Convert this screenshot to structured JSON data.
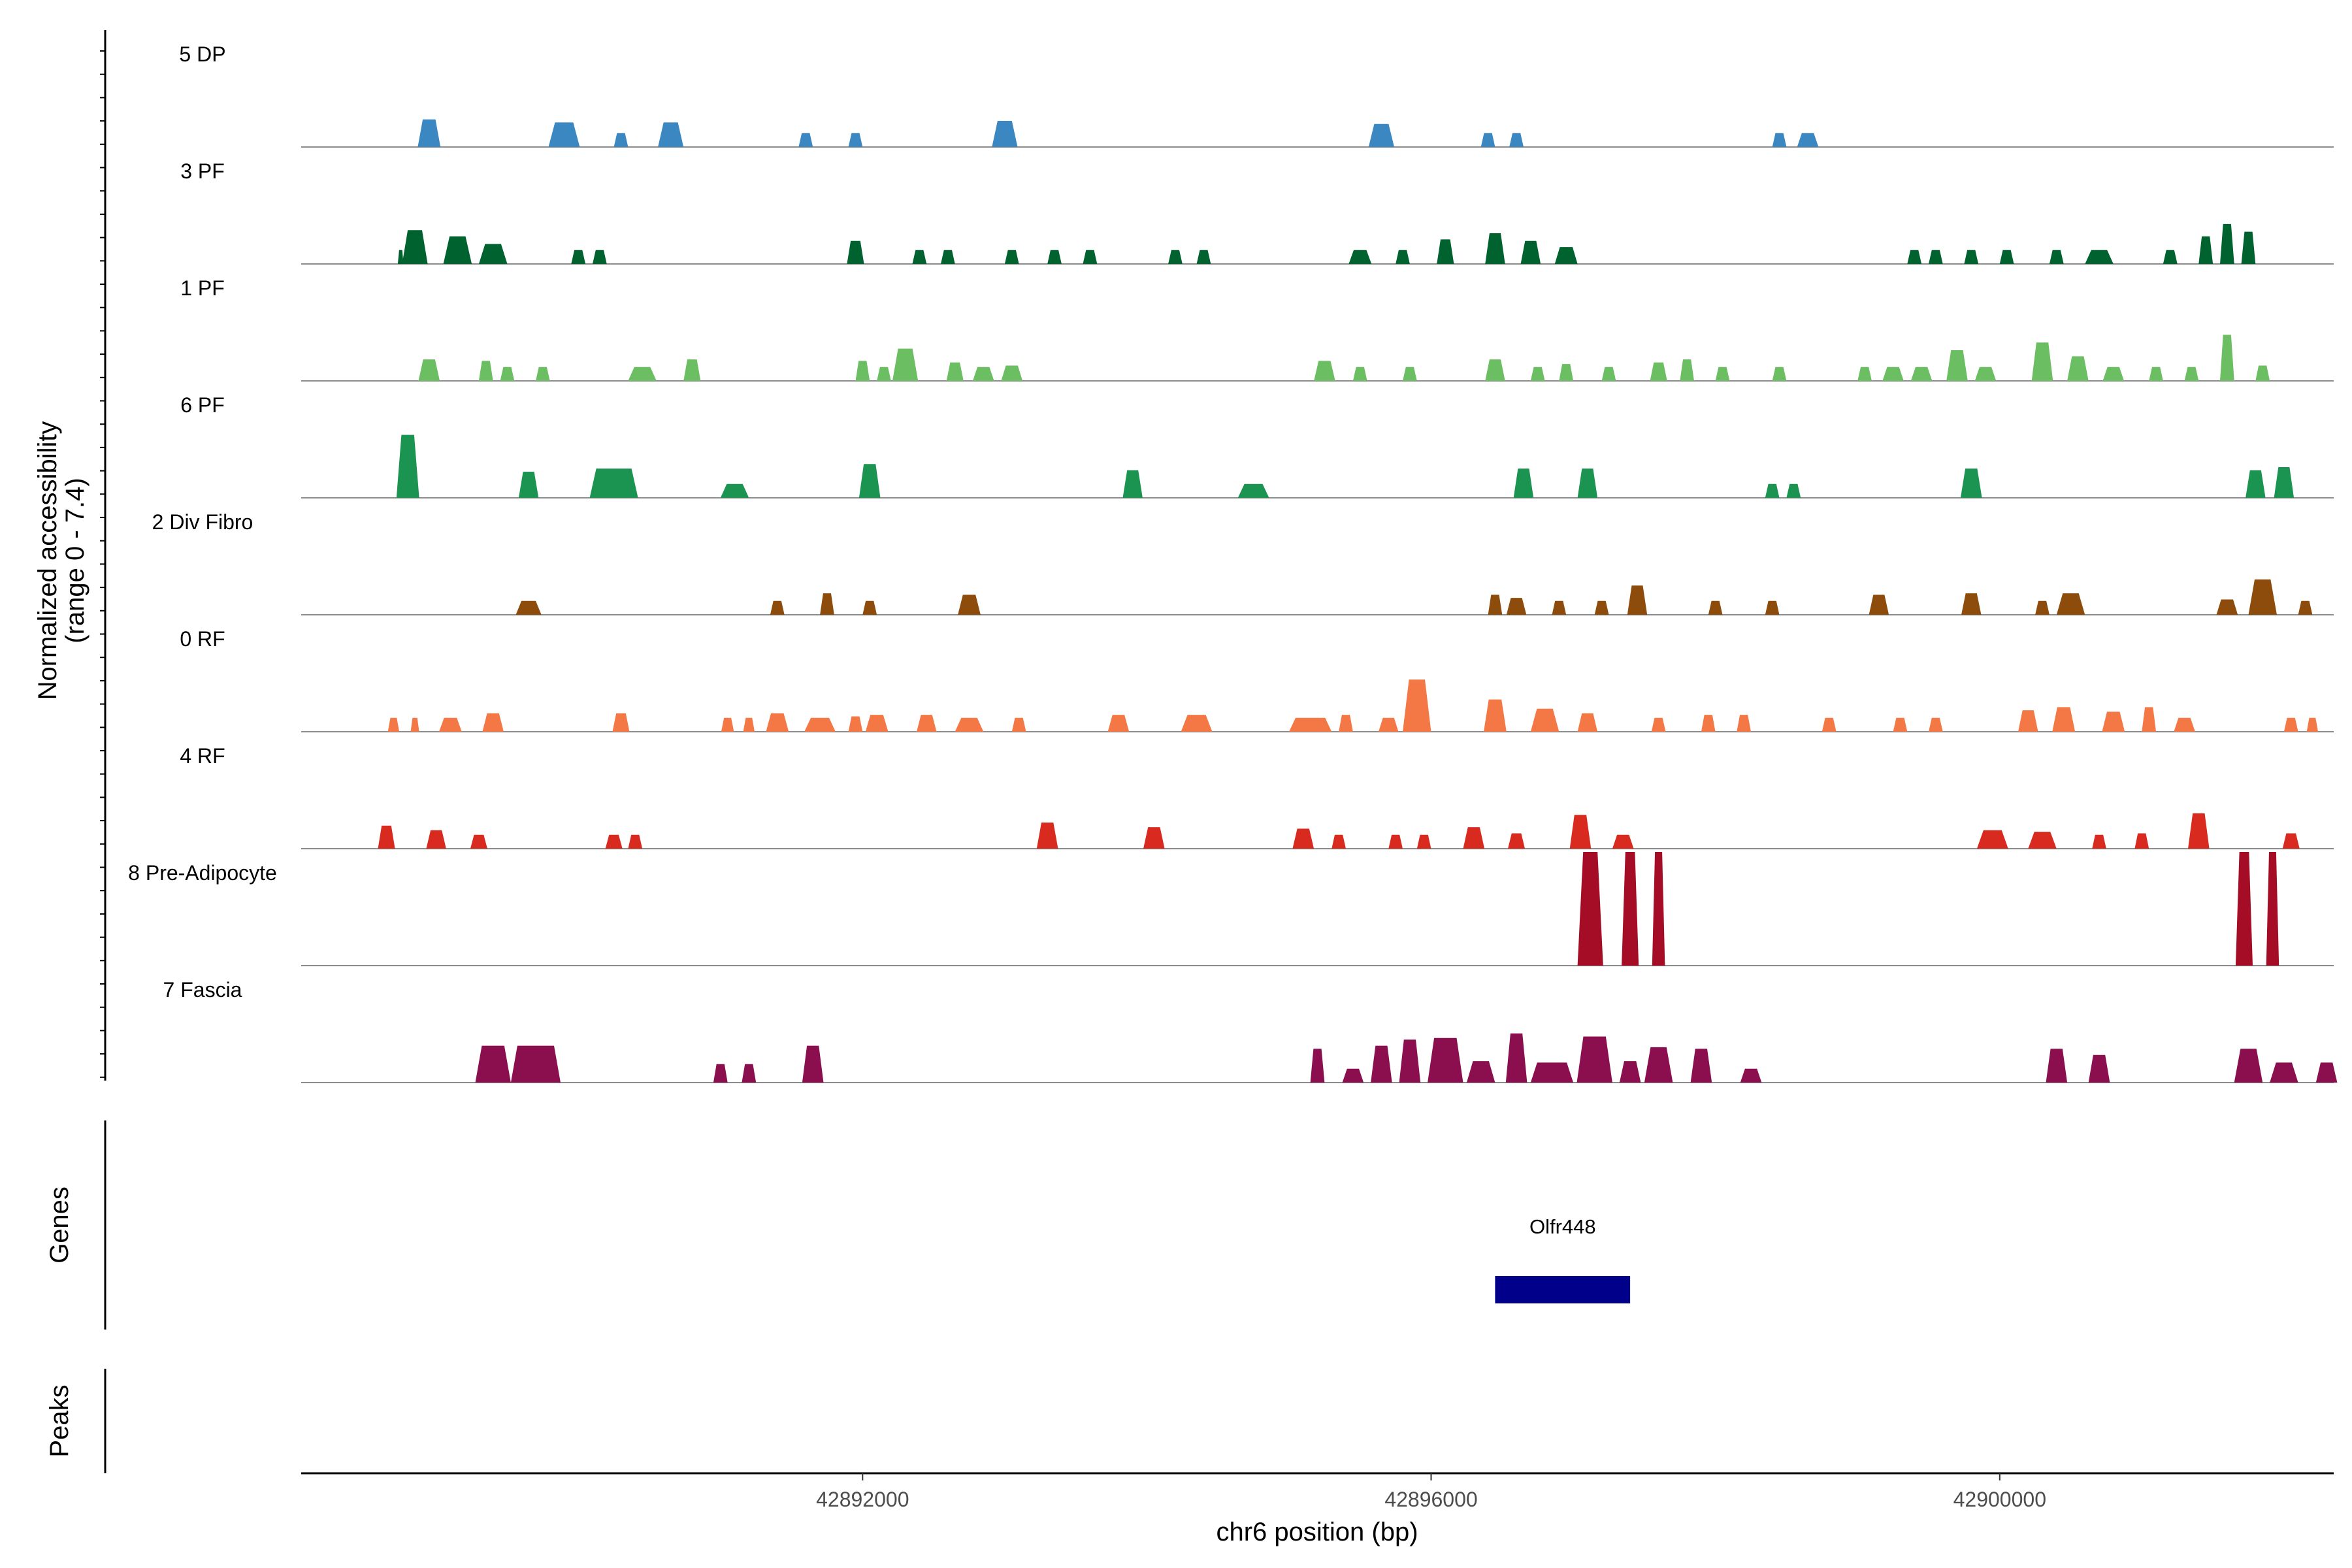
{
  "chart_data": {
    "type": "area",
    "ylabel": "Normalized accessibility",
    "ylabel_range": "(range 0 - 7.4)",
    "xlabel": "chr6 position (bp)",
    "xlim": [
      42888050,
      42902350
    ],
    "ylim": [
      0,
      7.4
    ],
    "x_ticks": [
      42892000,
      42896000,
      42900000
    ],
    "x_tick_labels": [
      "42892000",
      "42896000",
      "42900000"
    ],
    "tracks": [
      {
        "name": "5 DP",
        "color": "#3a87c2",
        "peaks": [
          [
            42888950,
            160,
            1.8
          ],
          [
            42889900,
            220,
            1.6
          ],
          [
            42890300,
            100,
            0.9
          ],
          [
            42890650,
            180,
            1.6
          ],
          [
            42891600,
            100,
            0.9
          ],
          [
            42891950,
            100,
            0.9
          ],
          [
            42893000,
            180,
            1.7
          ],
          [
            42895650,
            180,
            1.5
          ],
          [
            42896400,
            100,
            0.9
          ],
          [
            42896600,
            100,
            0.9
          ],
          [
            42898450,
            100,
            0.9
          ],
          [
            42898650,
            150,
            0.9
          ]
        ]
      },
      {
        "name": "3 PF",
        "color": "#00632f",
        "peaks": [
          [
            42888750,
            40,
            0.9
          ],
          [
            42888850,
            180,
            2.2
          ],
          [
            42889150,
            200,
            1.8
          ],
          [
            42889400,
            200,
            1.3
          ],
          [
            42890000,
            100,
            0.9
          ],
          [
            42890150,
            100,
            0.9
          ],
          [
            42891950,
            120,
            1.5
          ],
          [
            42892400,
            100,
            0.9
          ],
          [
            42892600,
            100,
            0.9
          ],
          [
            42893050,
            100,
            0.9
          ],
          [
            42893350,
            100,
            0.9
          ],
          [
            42893600,
            100,
            0.9
          ],
          [
            42894200,
            100,
            0.9
          ],
          [
            42894400,
            100,
            0.9
          ],
          [
            42895500,
            160,
            0.9
          ],
          [
            42895800,
            100,
            0.9
          ],
          [
            42896100,
            120,
            1.6
          ],
          [
            42896450,
            140,
            2.0
          ],
          [
            42896700,
            140,
            1.5
          ],
          [
            42896950,
            160,
            1.1
          ],
          [
            42899400,
            100,
            0.9
          ],
          [
            42899550,
            100,
            0.9
          ],
          [
            42899800,
            100,
            0.9
          ],
          [
            42900050,
            100,
            0.9
          ],
          [
            42900400,
            100,
            0.9
          ],
          [
            42900700,
            200,
            0.9
          ],
          [
            42901200,
            100,
            0.9
          ],
          [
            42901450,
            100,
            1.8
          ],
          [
            42901600,
            100,
            2.6
          ],
          [
            42901750,
            100,
            2.1
          ]
        ]
      },
      {
        "name": "1 PF",
        "color": "#6cbe62",
        "peaks": [
          [
            42888950,
            150,
            1.4
          ],
          [
            42889350,
            100,
            1.3
          ],
          [
            42889500,
            100,
            0.9
          ],
          [
            42889750,
            100,
            0.9
          ],
          [
            42890450,
            200,
            0.9
          ],
          [
            42890800,
            120,
            1.4
          ],
          [
            42892000,
            100,
            1.3
          ],
          [
            42892150,
            100,
            0.9
          ],
          [
            42892300,
            180,
            2.1
          ],
          [
            42892650,
            120,
            1.2
          ],
          [
            42892850,
            150,
            0.9
          ],
          [
            42893050,
            150,
            1.0
          ],
          [
            42895250,
            150,
            1.3
          ],
          [
            42895500,
            100,
            0.9
          ],
          [
            42895850,
            100,
            0.9
          ],
          [
            42896450,
            140,
            1.4
          ],
          [
            42896750,
            100,
            0.9
          ],
          [
            42896950,
            100,
            1.1
          ],
          [
            42897250,
            100,
            0.9
          ],
          [
            42897600,
            120,
            1.2
          ],
          [
            42897800,
            100,
            1.4
          ],
          [
            42898050,
            100,
            0.9
          ],
          [
            42898450,
            100,
            0.9
          ],
          [
            42899050,
            100,
            0.9
          ],
          [
            42899250,
            150,
            0.9
          ],
          [
            42899450,
            150,
            0.9
          ],
          [
            42899700,
            150,
            2.0
          ],
          [
            42899900,
            150,
            0.9
          ],
          [
            42900300,
            150,
            2.5
          ],
          [
            42900550,
            150,
            1.6
          ],
          [
            42900800,
            150,
            0.9
          ],
          [
            42901100,
            100,
            0.9
          ],
          [
            42901350,
            100,
            0.9
          ],
          [
            42901600,
            100,
            3.0
          ],
          [
            42901850,
            100,
            1.0
          ]
        ]
      },
      {
        "name": "6 PF",
        "color": "#1c9451",
        "peaks": [
          [
            42888800,
            160,
            4.1
          ],
          [
            42889650,
            140,
            1.7
          ],
          [
            42890250,
            340,
            1.9
          ],
          [
            42891100,
            200,
            0.9
          ],
          [
            42892050,
            150,
            2.2
          ],
          [
            42893900,
            140,
            1.8
          ],
          [
            42894750,
            220,
            0.9
          ],
          [
            42896650,
            140,
            1.9
          ],
          [
            42897100,
            140,
            1.9
          ],
          [
            42898400,
            100,
            0.9
          ],
          [
            42898550,
            100,
            0.9
          ],
          [
            42899800,
            150,
            1.9
          ],
          [
            42901800,
            140,
            1.8
          ],
          [
            42902000,
            140,
            2.0
          ]
        ]
      },
      {
        "name": "2 Div Fibro",
        "color": "#8d4c0b",
        "peaks": [
          [
            42889650,
            180,
            0.9
          ],
          [
            42891400,
            100,
            0.9
          ],
          [
            42891750,
            100,
            1.4
          ],
          [
            42892050,
            100,
            0.9
          ],
          [
            42892750,
            160,
            1.3
          ],
          [
            42896450,
            100,
            1.3
          ],
          [
            42896600,
            140,
            1.1
          ],
          [
            42896900,
            100,
            0.9
          ],
          [
            42897200,
            100,
            0.9
          ],
          [
            42897450,
            140,
            1.9
          ],
          [
            42898000,
            100,
            0.9
          ],
          [
            42898400,
            100,
            0.9
          ],
          [
            42899150,
            140,
            1.3
          ],
          [
            42899800,
            140,
            1.4
          ],
          [
            42900300,
            100,
            0.9
          ],
          [
            42900500,
            200,
            1.4
          ],
          [
            42901600,
            150,
            1.0
          ],
          [
            42901850,
            200,
            2.3
          ],
          [
            42902150,
            100,
            0.9
          ]
        ]
      },
      {
        "name": "0 RF",
        "color": "#f37845",
        "peaks": [
          [
            42888700,
            80,
            0.9
          ],
          [
            42888850,
            60,
            0.9
          ],
          [
            42889100,
            160,
            0.9
          ],
          [
            42889400,
            150,
            1.2
          ],
          [
            42890300,
            120,
            1.2
          ],
          [
            42891050,
            90,
            0.9
          ],
          [
            42891200,
            80,
            0.9
          ],
          [
            42891400,
            160,
            1.2
          ],
          [
            42891700,
            220,
            0.9
          ],
          [
            42891950,
            100,
            1.0
          ],
          [
            42892100,
            160,
            1.1
          ],
          [
            42892450,
            140,
            1.1
          ],
          [
            42892750,
            200,
            0.9
          ],
          [
            42893100,
            100,
            0.9
          ],
          [
            42893800,
            150,
            1.1
          ],
          [
            42894350,
            220,
            1.1
          ],
          [
            42895150,
            300,
            0.9
          ],
          [
            42895400,
            100,
            1.1
          ],
          [
            42895700,
            140,
            0.9
          ],
          [
            42895900,
            200,
            3.4
          ],
          [
            42896450,
            160,
            2.1
          ],
          [
            42896800,
            200,
            1.5
          ],
          [
            42897100,
            140,
            1.2
          ],
          [
            42897600,
            100,
            0.9
          ],
          [
            42897950,
            100,
            1.1
          ],
          [
            42898200,
            100,
            1.1
          ],
          [
            42898800,
            100,
            0.9
          ],
          [
            42899300,
            100,
            0.9
          ],
          [
            42899550,
            100,
            0.9
          ],
          [
            42900200,
            140,
            1.4
          ],
          [
            42900450,
            160,
            1.6
          ],
          [
            42900800,
            160,
            1.3
          ],
          [
            42901050,
            100,
            1.6
          ],
          [
            42901300,
            150,
            0.9
          ],
          [
            42902050,
            100,
            0.9
          ],
          [
            42902200,
            80,
            0.9
          ]
        ]
      },
      {
        "name": "4 RF",
        "color": "#d82a1f",
        "peaks": [
          [
            42888650,
            120,
            1.5
          ],
          [
            42889000,
            140,
            1.2
          ],
          [
            42889300,
            120,
            0.9
          ],
          [
            42890250,
            120,
            0.9
          ],
          [
            42890400,
            100,
            0.9
          ],
          [
            42893300,
            150,
            1.7
          ],
          [
            42894050,
            150,
            1.4
          ],
          [
            42895100,
            150,
            1.3
          ],
          [
            42895350,
            100,
            0.9
          ],
          [
            42895750,
            100,
            0.9
          ],
          [
            42895950,
            100,
            0.9
          ],
          [
            42896300,
            150,
            1.4
          ],
          [
            42896600,
            120,
            1.0
          ],
          [
            42897050,
            150,
            2.2
          ],
          [
            42897350,
            150,
            0.9
          ],
          [
            42899950,
            220,
            1.2
          ],
          [
            42900300,
            200,
            1.1
          ],
          [
            42900700,
            100,
            0.9
          ],
          [
            42901000,
            100,
            1.0
          ],
          [
            42901400,
            150,
            2.3
          ],
          [
            42902050,
            120,
            1.0
          ]
        ]
      },
      {
        "name": "8 Pre-Adipocyte",
        "color": "#a50d26",
        "peaks": [
          [
            42897120,
            180,
            7.4
          ],
          [
            42897400,
            120,
            7.4
          ],
          [
            42897600,
            90,
            7.4
          ],
          [
            42901720,
            120,
            7.4
          ],
          [
            42901920,
            90,
            7.4
          ]
        ]
      },
      {
        "name": "7 Fascia",
        "color": "#8b0f4f",
        "peaks": [
          [
            42889400,
            250,
            2.4
          ],
          [
            42889700,
            350,
            2.4
          ],
          [
            42891000,
            100,
            1.2
          ],
          [
            42891200,
            100,
            1.2
          ],
          [
            42891650,
            150,
            2.4
          ],
          [
            42895200,
            100,
            2.2
          ],
          [
            42895450,
            150,
            0.9
          ],
          [
            42895650,
            150,
            2.4
          ],
          [
            42895850,
            150,
            2.8
          ],
          [
            42896100,
            250,
            2.9
          ],
          [
            42896350,
            200,
            1.4
          ],
          [
            42896600,
            150,
            3.2
          ],
          [
            42896850,
            300,
            1.3
          ],
          [
            42897150,
            250,
            3.0
          ],
          [
            42897400,
            150,
            1.4
          ],
          [
            42897600,
            200,
            2.3
          ],
          [
            42897900,
            150,
            2.2
          ],
          [
            42898250,
            150,
            0.9
          ],
          [
            42900400,
            150,
            2.2
          ],
          [
            42900700,
            150,
            1.8
          ],
          [
            42901750,
            200,
            2.2
          ],
          [
            42902000,
            200,
            1.3
          ],
          [
            42902300,
            150,
            1.3
          ]
        ]
      }
    ],
    "genes_title": "Genes",
    "genes": [
      {
        "name": "Olfr448",
        "start": 42896450,
        "end": 42897400,
        "color": "#00008b"
      }
    ],
    "peaks_title": "Peaks"
  }
}
